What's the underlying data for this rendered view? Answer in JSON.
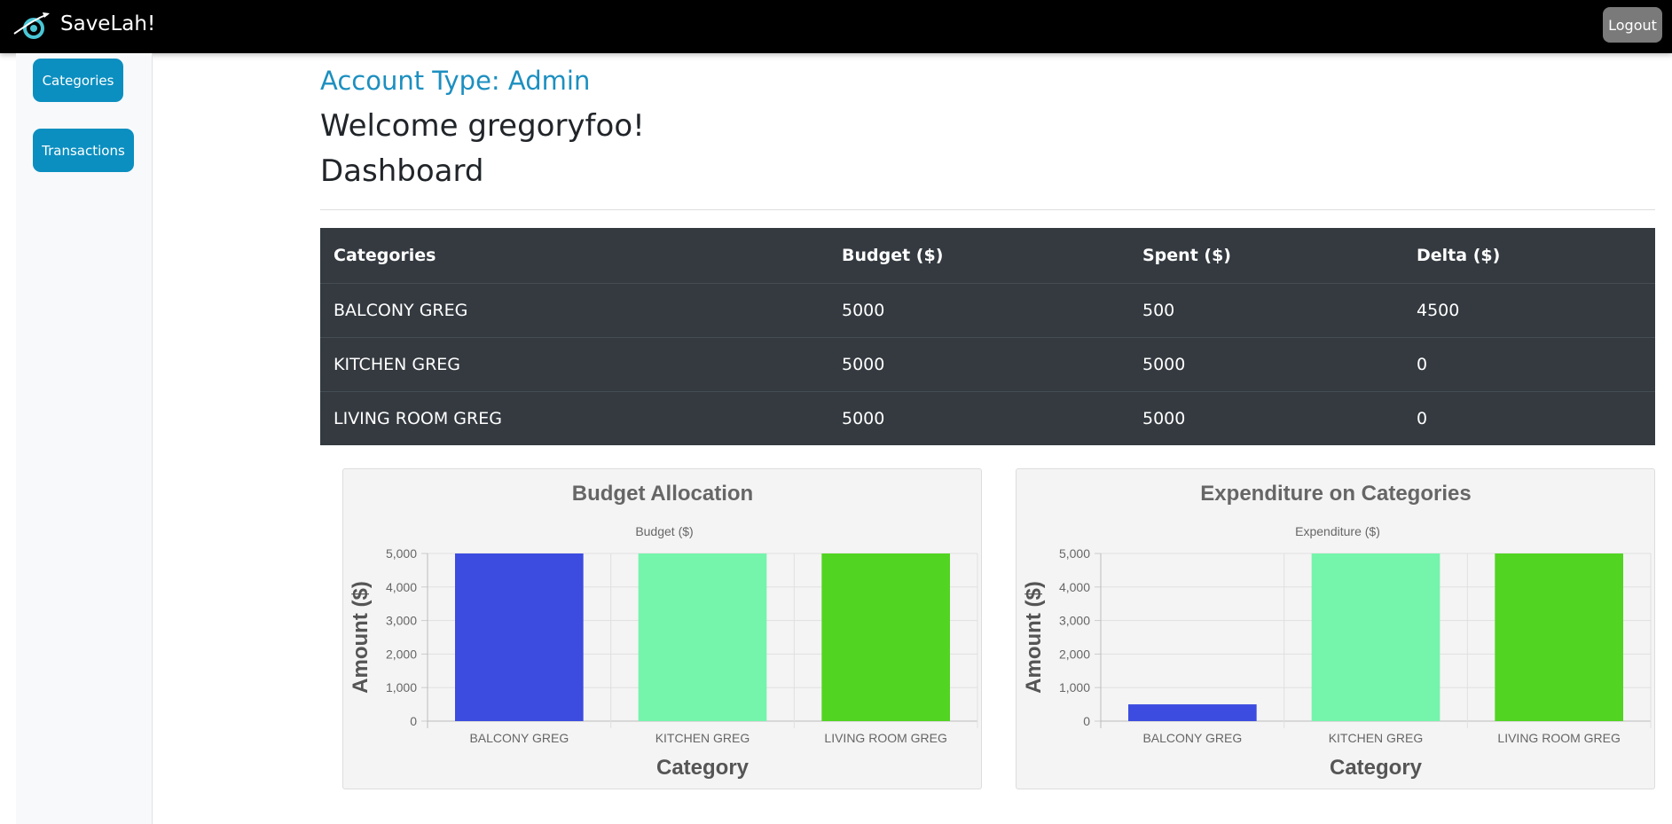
{
  "app": {
    "name": "SaveLah!"
  },
  "navbar": {
    "logout_label": "Logout"
  },
  "sidebar": {
    "items": [
      {
        "label": "Categories"
      },
      {
        "label": "Transactions"
      }
    ]
  },
  "header": {
    "account_type": "Account Type: Admin",
    "welcome": "Welcome gregoryfoo!",
    "title": "Dashboard"
  },
  "table": {
    "headers": [
      "Categories",
      "Budget ($)",
      "Spent ($)",
      "Delta ($)"
    ],
    "rows": [
      [
        "BALCONY GREG",
        "5000",
        "500",
        "4500"
      ],
      [
        "KITCHEN GREG",
        "5000",
        "5000",
        "0"
      ],
      [
        "LIVING ROOM GREG",
        "5000",
        "5000",
        "0"
      ]
    ]
  },
  "colors": {
    "navbar": "#000000",
    "accent": "#0b8fc0",
    "table_bg": "#343a40"
  },
  "chart_data": [
    {
      "type": "bar",
      "title": "Budget Allocation",
      "legend": "Budget ($)",
      "xlabel": "Category",
      "ylabel": "Amount ($)",
      "categories": [
        "BALCONY GREG",
        "KITCHEN GREG",
        "LIVING ROOM GREG"
      ],
      "values": [
        5000,
        5000,
        5000
      ],
      "colors": [
        "#3c4ce0",
        "#75f4ac",
        "#52d422"
      ],
      "ylim": [
        0,
        5000
      ],
      "yticks": [
        "0",
        "1,000",
        "2,000",
        "3,000",
        "4,000",
        "5,000"
      ],
      "grid": true
    },
    {
      "type": "bar",
      "title": "Expenditure on Categories",
      "legend": "Expenditure ($)",
      "xlabel": "Category",
      "ylabel": "Amount ($)",
      "categories": [
        "BALCONY GREG",
        "KITCHEN GREG",
        "LIVING ROOM GREG"
      ],
      "values": [
        500,
        5000,
        5000
      ],
      "colors": [
        "#3c4ce0",
        "#75f4ac",
        "#52d422"
      ],
      "ylim": [
        0,
        5000
      ],
      "yticks": [
        "0",
        "1,000",
        "2,000",
        "3,000",
        "4,000",
        "5,000"
      ],
      "grid": true
    }
  ]
}
